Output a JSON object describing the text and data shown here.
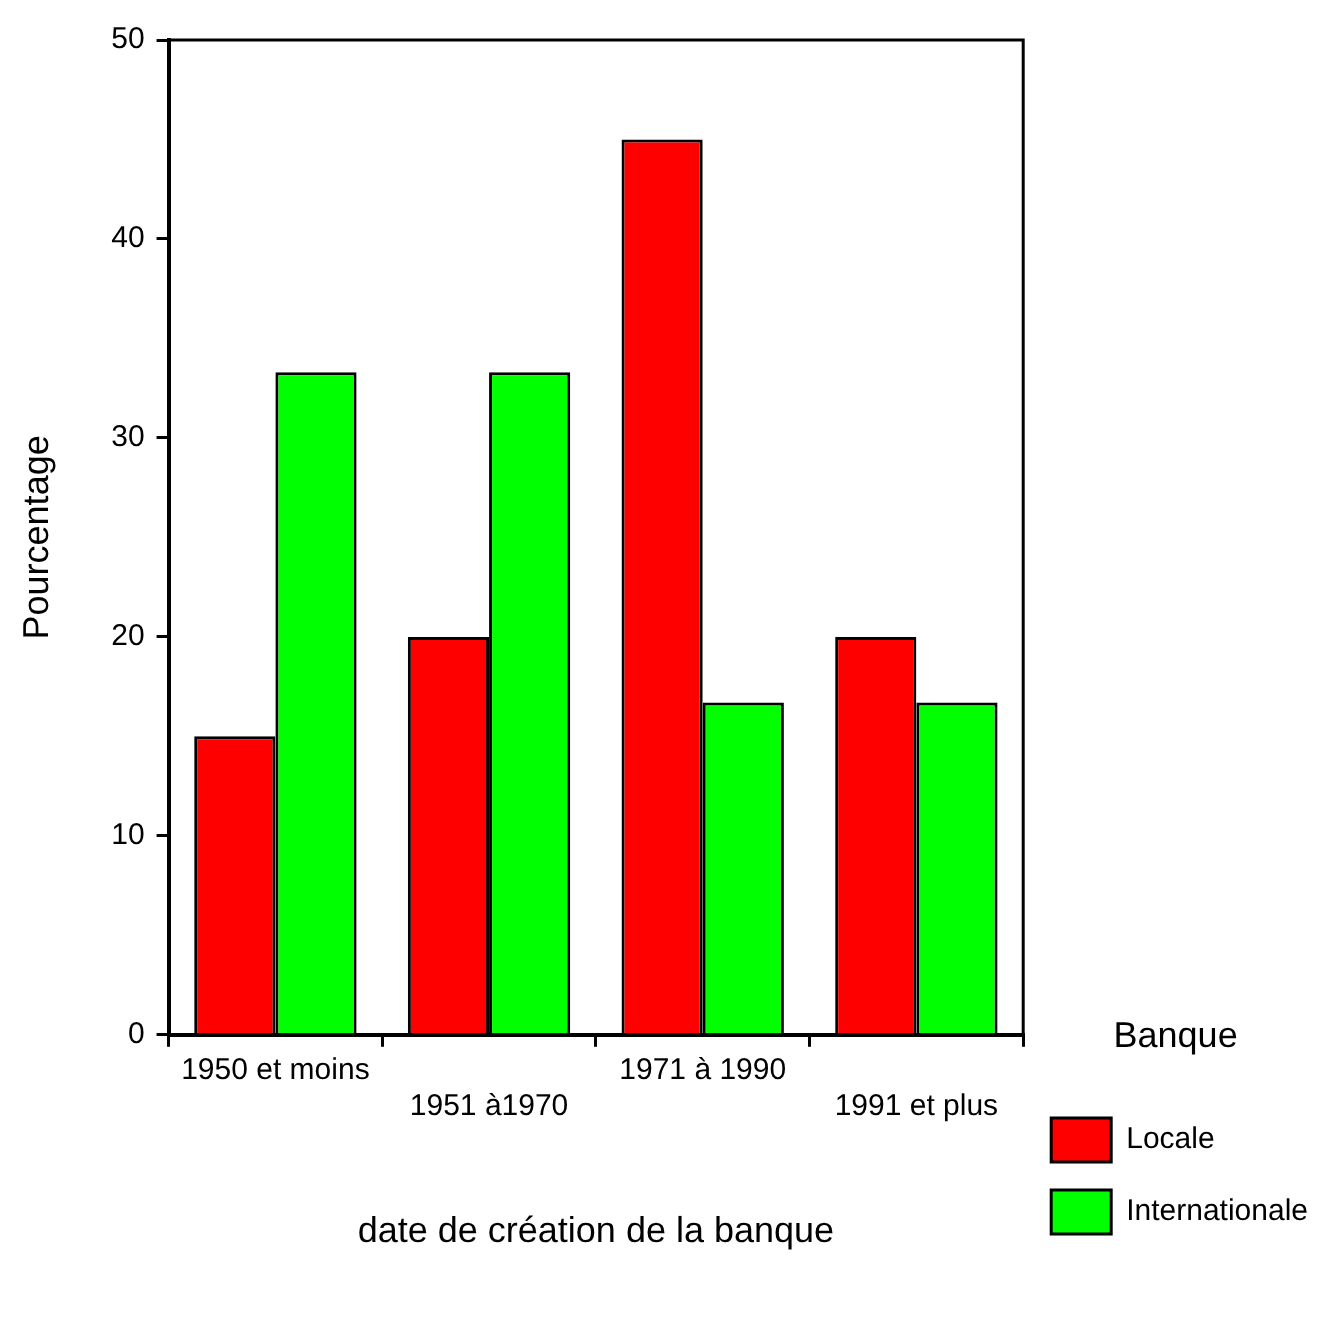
{
  "chart_data": {
    "type": "bar",
    "xlabel": "date de création de la banque",
    "ylabel": "Pourcentage",
    "legend_title": "Banque",
    "categories": [
      "1950 et moins",
      "1951 à1970",
      "1971 à 1990",
      "1991 et plus"
    ],
    "series": [
      {
        "name": "Locale",
        "color": "#ff0000",
        "values": [
          15,
          20,
          45,
          20
        ]
      },
      {
        "name": "Internationale",
        "color": "#00ff00",
        "values": [
          33.3,
          33.3,
          16.7,
          16.7
        ]
      }
    ],
    "ylim": [
      0,
      50
    ],
    "yticks": [
      0,
      10,
      20,
      30,
      40,
      50
    ],
    "grid": false,
    "legend": "right"
  }
}
